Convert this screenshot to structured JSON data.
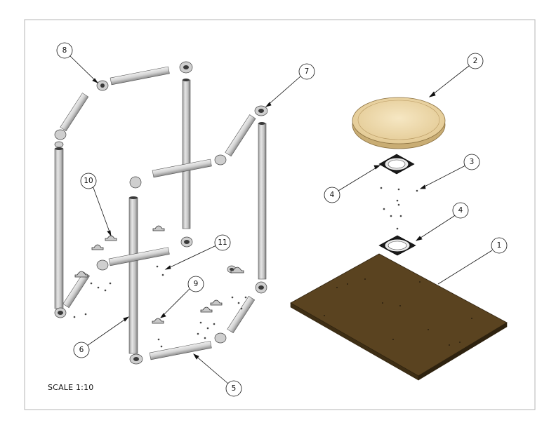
{
  "scale_label": "SCALE 1:10",
  "balloons": {
    "b1": "1",
    "b2": "2",
    "b3": "3",
    "b4a": "4",
    "b4b": "4",
    "b5": "5",
    "b6": "6",
    "b7": "7",
    "b8": "8",
    "b9": "9",
    "b10": "10",
    "b11": "11"
  },
  "colors": {
    "pipe_light": "#e3e3e3",
    "pipe_dark": "#8a8a8a",
    "board": "#5a4320",
    "board_edge": "#2e220f",
    "wood_top": "#efdcb0",
    "wood_edge": "#c9ad74",
    "bearing": "#1a1a1a"
  }
}
